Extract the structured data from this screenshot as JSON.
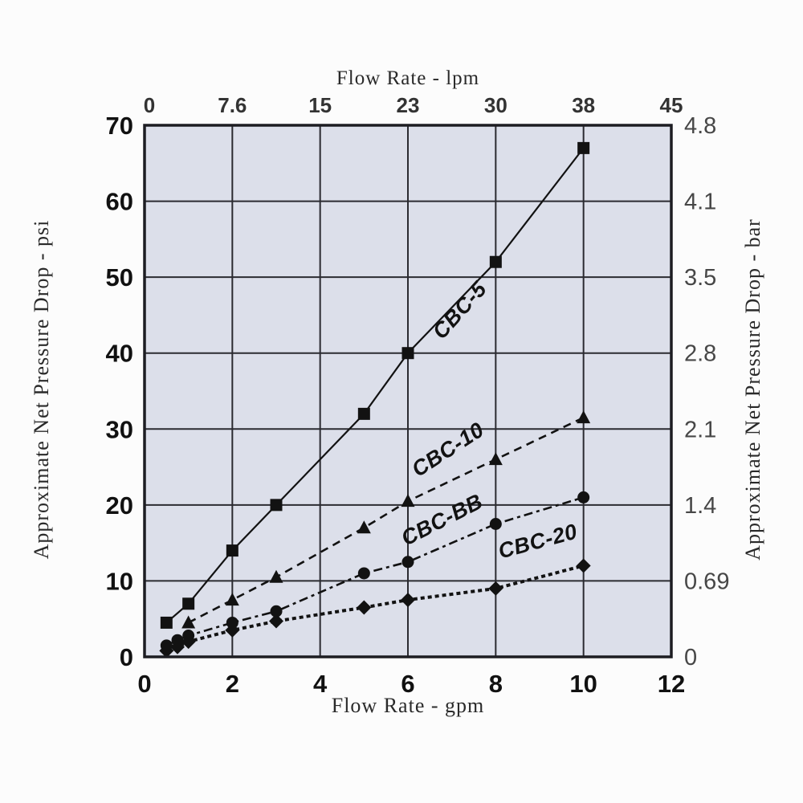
{
  "chart_data": {
    "type": "line",
    "title": "",
    "colors": {
      "plot_background": "#dcdfea",
      "grid": "#2b2b31",
      "border": "#1d1d22",
      "ink": "#121212",
      "left_tick_color": "#111111",
      "bottom_tick_color": "#111111",
      "top_tick_color": "#333333",
      "right_tick_color": "#474747"
    },
    "top_axis": {
      "title": "Flow Rate - lpm",
      "ticks": [
        "0",
        "7.6",
        "15",
        "23",
        "30",
        "38",
        "45"
      ]
    },
    "bottom_axis": {
      "title": "Flow Rate - gpm",
      "ticks": [
        "0",
        "2",
        "4",
        "6",
        "8",
        "10",
        "12"
      ],
      "range": [
        0,
        12
      ]
    },
    "left_axis": {
      "title": "Approximate Net Pressure Drop - psi",
      "ticks": [
        "70",
        "60",
        "50",
        "40",
        "30",
        "20",
        "10",
        "0"
      ],
      "range": [
        0,
        70
      ]
    },
    "right_axis": {
      "title": "Approximate Net Pressure Drop - bar",
      "ticks": [
        "4.8",
        "4.1",
        "3.5",
        "2.8",
        "2.1",
        "1.4",
        "0.69",
        "0"
      ]
    },
    "grid": "on",
    "legend_position": "inline-labels",
    "series": [
      {
        "name": "CBC-5",
        "marker": "square",
        "line_style": "solid",
        "dash": "none",
        "line_width": 2.2,
        "points": [
          [
            0.5,
            4.5
          ],
          [
            1,
            7
          ],
          [
            2,
            14
          ],
          [
            3,
            20
          ],
          [
            5,
            32
          ],
          [
            6,
            40
          ],
          [
            8,
            52
          ],
          [
            10,
            67
          ]
        ],
        "label": {
          "x": 7.3,
          "y": 45,
          "rot": -48
        }
      },
      {
        "name": "CBC-10",
        "marker": "triangle",
        "line_style": "dashed",
        "dash": "10,7",
        "line_width": 2.6,
        "points": [
          [
            1,
            4.5
          ],
          [
            2,
            7.5
          ],
          [
            3,
            10.5
          ],
          [
            5,
            17
          ],
          [
            6,
            20.5
          ],
          [
            8,
            26
          ],
          [
            10,
            31.5
          ]
        ],
        "label": {
          "x": 7.0,
          "y": 26.5,
          "rot": -33
        }
      },
      {
        "name": "CBC-BB",
        "marker": "circle",
        "line_style": "dash-dot",
        "dash": "11,5,4,5",
        "line_width": 2.6,
        "points": [
          [
            0.5,
            1.5
          ],
          [
            0.75,
            2.2
          ],
          [
            1,
            2.8
          ],
          [
            2,
            4.5
          ],
          [
            3,
            6
          ],
          [
            5,
            11
          ],
          [
            6,
            12.5
          ],
          [
            8,
            17.5
          ],
          [
            10,
            21
          ]
        ],
        "label": {
          "x": 6.85,
          "y": 17.2,
          "rot": -27
        }
      },
      {
        "name": "CBC-20",
        "marker": "diamond",
        "line_style": "bold-dotted",
        "dash": "5,4",
        "line_width": 4,
        "points": [
          [
            0.5,
            0.8
          ],
          [
            0.75,
            1.3
          ],
          [
            1,
            2
          ],
          [
            2,
            3.5
          ],
          [
            3,
            4.7
          ],
          [
            5,
            6.5
          ],
          [
            6,
            7.5
          ],
          [
            8,
            9
          ],
          [
            10,
            12
          ]
        ],
        "label": {
          "x": 9.0,
          "y": 14.3,
          "rot": -15
        }
      }
    ]
  }
}
